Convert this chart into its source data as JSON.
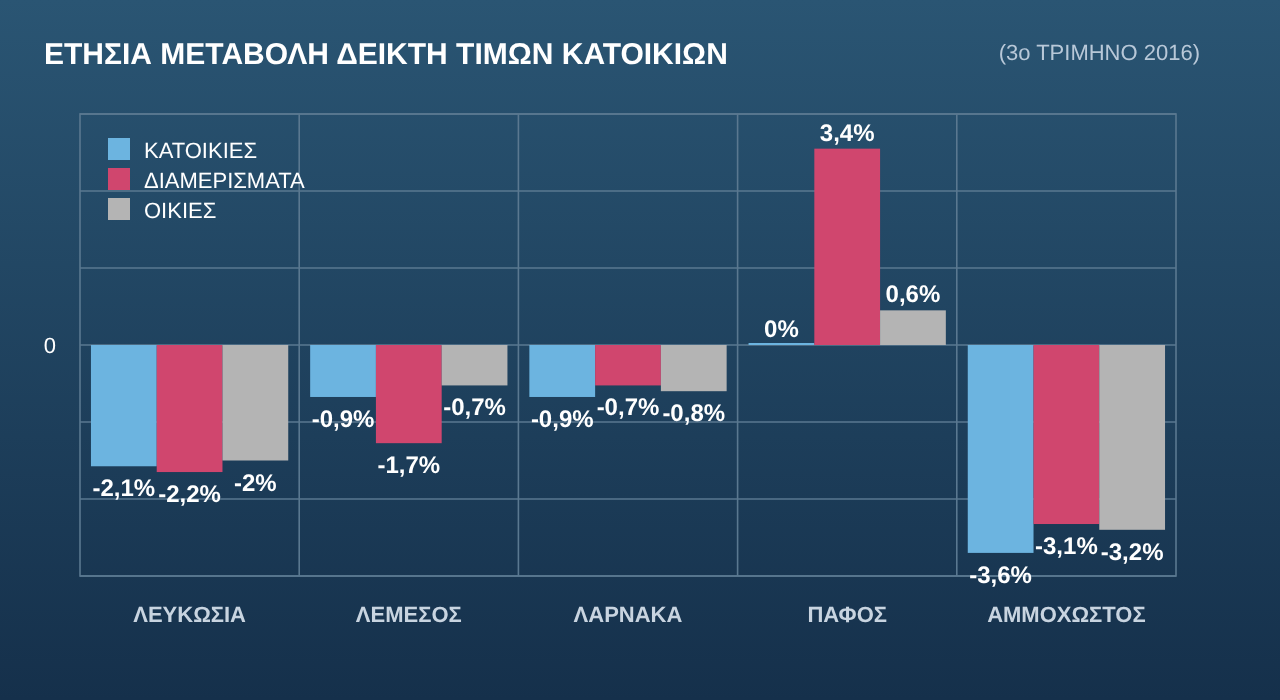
{
  "chart_data": {
    "type": "bar",
    "title": "ΕΤΗΣΙΑ ΜΕΤΑΒΟΛΗ ΔΕΙΚΤΗ ΤΙΜΩΝ ΚΑΤΟΙΚΙΩΝ",
    "subtitle": "(3ο ΤΡΙΜΗΝΟ 2016)",
    "categories": [
      "ΛΕΥΚΩΣΙΑ",
      "ΛΕΜΕΣΟΣ",
      "ΛΑΡΝΑΚΑ",
      "ΠΑΦΟΣ",
      "ΑΜΜΟΧΩΣΤΟΣ"
    ],
    "series": [
      {
        "name": "ΚΑΤΟΙΚΙΕΣ",
        "color": "#6cb4e0",
        "values": [
          -2.1,
          -0.9,
          -0.9,
          0,
          -3.6
        ],
        "value_labels": [
          "-2,1%",
          "-0,9%",
          "-0,9%",
          "0%",
          "-3,6%"
        ]
      },
      {
        "name": "ΔΙΑΜΕΡΙΣΜΑΤΑ",
        "color": "#d0466e",
        "values": [
          -2.2,
          -1.7,
          -0.7,
          3.4,
          -3.1
        ],
        "value_labels": [
          "-2,2%",
          "-1,7%",
          "-0,7%",
          "3,4%",
          "-3,1%"
        ]
      },
      {
        "name": "ΟΙΚΙΕΣ",
        "color": "#b4b4b4",
        "values": [
          -2,
          -0.7,
          -0.8,
          0.6,
          -3.2
        ],
        "value_labels": [
          "-2%",
          "-0,7%",
          "-0,8%",
          "0,6%",
          "-3,2%"
        ]
      }
    ],
    "ylim": [
      -4,
      4
    ],
    "annotations": [
      "0"
    ],
    "grid": true,
    "legend": "top left"
  }
}
